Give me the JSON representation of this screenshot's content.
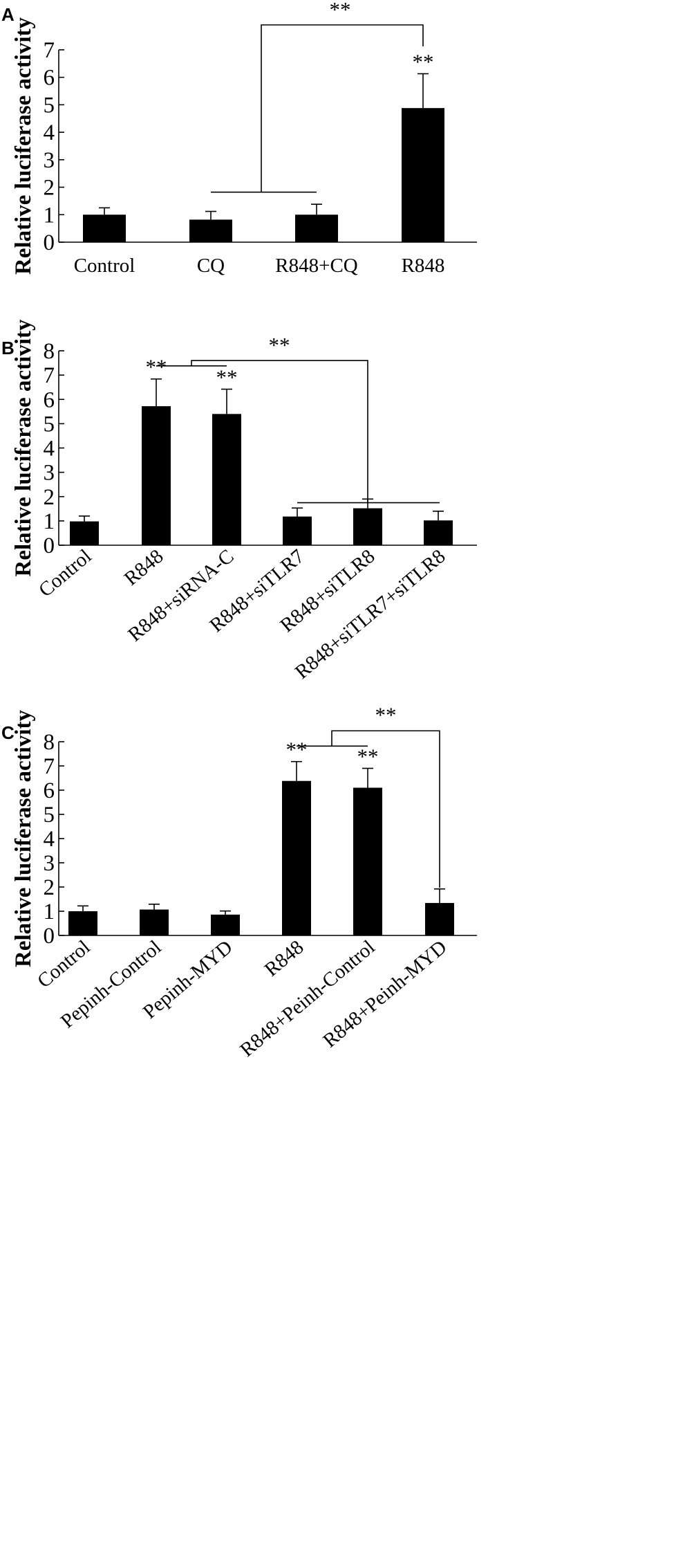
{
  "chart_data": [
    {
      "panel": "A",
      "type": "bar",
      "ylabel": "Relative luciferase activity",
      "ylim": [
        0,
        7
      ],
      "yticks": [
        "0",
        "1",
        "2",
        "3",
        "4",
        "5",
        "6",
        "7"
      ],
      "categories": [
        "Control",
        "CQ",
        "R848+CQ",
        "R848"
      ],
      "values": [
        1.0,
        0.82,
        1.0,
        4.88
      ],
      "errors": [
        0.25,
        0.3,
        0.38,
        1.25
      ],
      "annotations": [
        "",
        "",
        "",
        "**"
      ],
      "comparison": {
        "label": "**"
      }
    },
    {
      "panel": "B",
      "type": "bar",
      "ylabel": "Relative luciferase activity",
      "ylim": [
        0,
        8
      ],
      "yticks": [
        "0",
        "1",
        "2",
        "3",
        "4",
        "5",
        "6",
        "7",
        "8"
      ],
      "categories": [
        "Control",
        "R848",
        "R848+siRNA-C",
        "R848+siTLR7",
        "R848+siTLR8",
        "R848+siTLR7+siTLR8"
      ],
      "values": [
        0.98,
        5.72,
        5.4,
        1.18,
        1.52,
        1.02
      ],
      "errors": [
        0.22,
        1.12,
        1.02,
        0.35,
        0.38,
        0.38
      ],
      "annotations": [
        "",
        "**",
        "**",
        "",
        "",
        ""
      ],
      "comparison": {
        "label": "**"
      }
    },
    {
      "panel": "C",
      "type": "bar",
      "ylabel": "Relative luciferase activity",
      "ylim": [
        0,
        8
      ],
      "yticks": [
        "0",
        "1",
        "2",
        "3",
        "4",
        "5",
        "6",
        "7",
        "8"
      ],
      "categories": [
        "Control",
        "Pepinh-Control",
        "Pepinh-MYD",
        "R848",
        "R848+Peinh-Control",
        "R848+Peinh-MYD"
      ],
      "values": [
        1.0,
        1.07,
        0.86,
        6.38,
        6.1,
        1.34
      ],
      "errors": [
        0.22,
        0.22,
        0.15,
        0.8,
        0.8,
        0.58
      ],
      "annotations": [
        "",
        "",
        "",
        "**",
        "**",
        ""
      ],
      "comparison": {
        "label": "**"
      }
    }
  ],
  "colors": {
    "bar": "#000000",
    "axis": "#000000",
    "background": "#ffffff"
  }
}
